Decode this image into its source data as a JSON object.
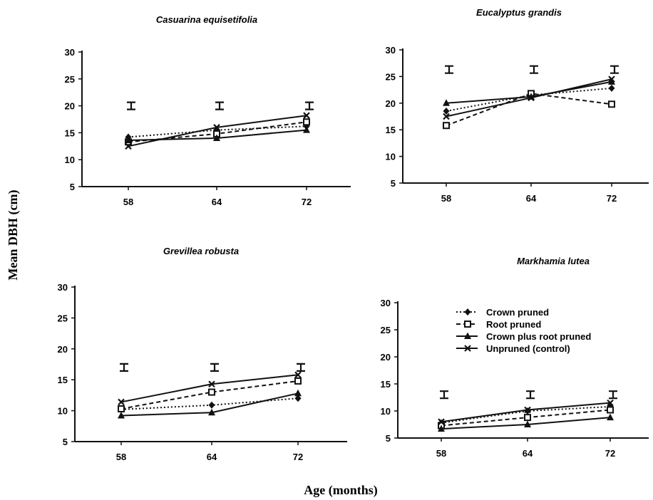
{
  "figure": {
    "ylabel": "Mean DBH (cm)",
    "xlabel": "Age (months)"
  },
  "legend": [
    {
      "label": "Crown pruned",
      "marker": "diamond",
      "dash": "dotted"
    },
    {
      "label": "Root pruned",
      "marker": "square",
      "dash": "dashed"
    },
    {
      "label": "Crown plus root pruned",
      "marker": "triangle",
      "dash": "solid"
    },
    {
      "label": "Unpruned (control)",
      "marker": "x",
      "dash": "solid"
    }
  ],
  "chart_data": [
    {
      "type": "line",
      "title": "Casuarina equisetifolia",
      "x": [
        "58",
        "64",
        "72"
      ],
      "ylim": [
        5,
        30
      ],
      "yticks": [
        5,
        10,
        15,
        20,
        25,
        30
      ],
      "series": [
        {
          "name": "Crown pruned",
          "values": [
            14.2,
            15.5,
            16.2
          ]
        },
        {
          "name": "Root pruned",
          "values": [
            13.3,
            14.8,
            17.0
          ]
        },
        {
          "name": "Crown plus root pruned",
          "values": [
            13.6,
            14.0,
            15.5
          ]
        },
        {
          "name": "Unpruned (control)",
          "values": [
            12.5,
            16.0,
            18.2
          ]
        }
      ],
      "error_bars": [
        20,
        20,
        20
      ]
    },
    {
      "type": "line",
      "title": "Eucalyptus grandis",
      "x": [
        "58",
        "64",
        "72"
      ],
      "ylim": [
        5,
        30
      ],
      "yticks": [
        5,
        10,
        15,
        20,
        25,
        30
      ],
      "series": [
        {
          "name": "Crown pruned",
          "values": [
            18.5,
            21.5,
            22.8
          ]
        },
        {
          "name": "Root pruned",
          "values": [
            15.8,
            21.8,
            19.8
          ]
        },
        {
          "name": "Crown plus root pruned",
          "values": [
            20.0,
            21.2,
            24.0
          ]
        },
        {
          "name": "Unpruned (control)",
          "values": [
            17.5,
            21.0,
            24.5
          ]
        }
      ],
      "error_bars": [
        26.3,
        26.3,
        26.3
      ]
    },
    {
      "type": "line",
      "title": "Grevillea robusta",
      "x": [
        "58",
        "64",
        "72"
      ],
      "ylim": [
        5,
        30
      ],
      "yticks": [
        5,
        10,
        15,
        20,
        25,
        30
      ],
      "series": [
        {
          "name": "Crown pruned",
          "values": [
            10.2,
            10.9,
            12.0
          ]
        },
        {
          "name": "Root pruned",
          "values": [
            10.3,
            13.0,
            14.8
          ]
        },
        {
          "name": "Crown plus root pruned",
          "values": [
            9.2,
            9.7,
            12.8
          ]
        },
        {
          "name": "Unpruned (control)",
          "values": [
            11.4,
            14.3,
            15.8
          ]
        }
      ],
      "error_bars": [
        17,
        17,
        17
      ]
    },
    {
      "type": "line",
      "title": "Markhamia lutea",
      "x": [
        "58",
        "64",
        "72"
      ],
      "ylim": [
        5,
        30
      ],
      "yticks": [
        5,
        10,
        15,
        20,
        25,
        30
      ],
      "series": [
        {
          "name": "Crown pruned",
          "values": [
            7.8,
            10.0,
            10.8
          ]
        },
        {
          "name": "Root pruned",
          "values": [
            7.3,
            8.8,
            10.2
          ]
        },
        {
          "name": "Crown plus root pruned",
          "values": [
            6.7,
            7.5,
            8.8
          ]
        },
        {
          "name": "Unpruned (control)",
          "values": [
            8.0,
            10.2,
            11.5
          ]
        }
      ],
      "error_bars": [
        13,
        13,
        13
      ]
    }
  ]
}
